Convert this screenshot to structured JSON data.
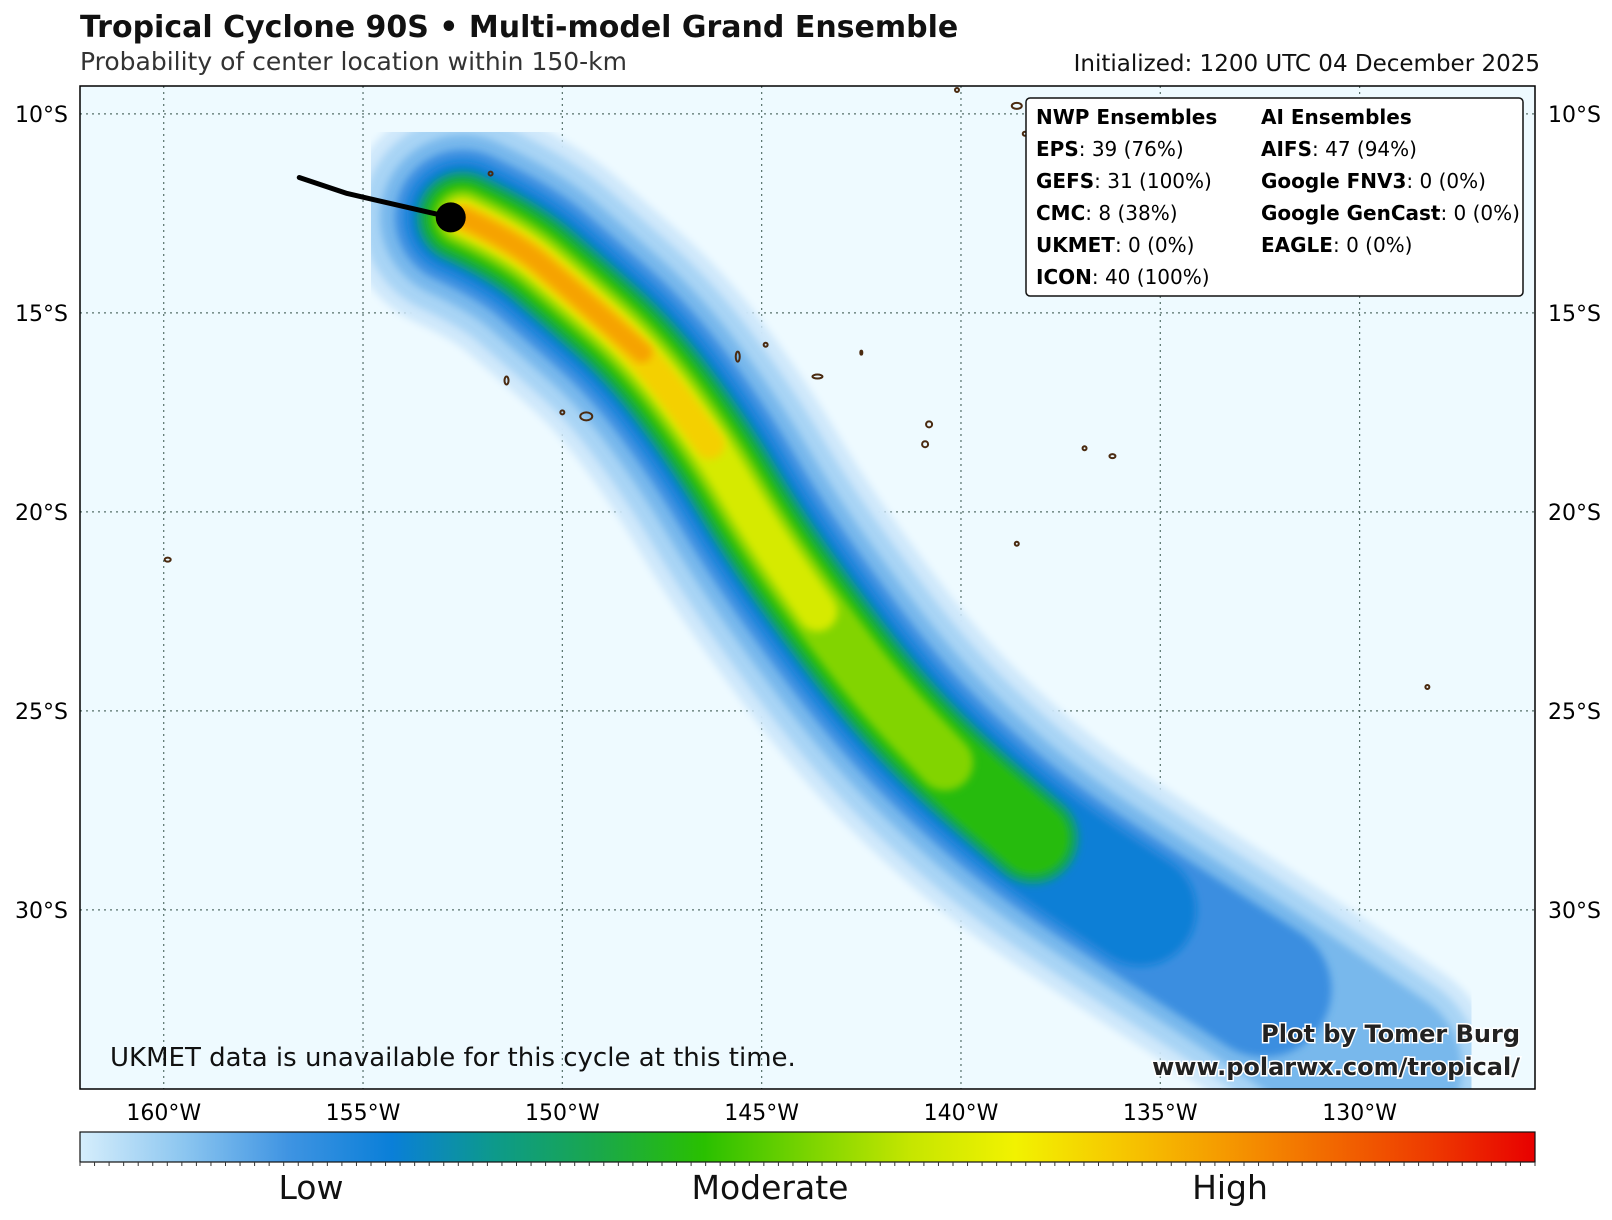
{
  "header": {
    "title": "Tropical Cyclone 90S • Multi-model Grand Ensemble",
    "subtitle": "Probability of center location within 150-km",
    "initialized": "Initialized: 1200 UTC 04 December 2025"
  },
  "map": {
    "lon_range": [
      -162.1,
      -125.6
    ],
    "lat_range": [
      -9.3,
      -34.5
    ],
    "lon_ticks": [
      -160,
      -155,
      -150,
      -145,
      -140,
      -135,
      -130
    ],
    "lon_tick_labels": [
      "160°W",
      "155°W",
      "150°W",
      "145°W",
      "140°W",
      "135°W",
      "130°W"
    ],
    "lat_ticks": [
      -10,
      -15,
      -20,
      -25,
      -30
    ],
    "lat_tick_labels": [
      "10°S",
      "15°S",
      "20°S",
      "25°S",
      "30°S"
    ],
    "gridlines": true,
    "ocean_color": "#eefaff",
    "land_outline_color": "#4a2a10",
    "track_color": "#000000",
    "current_position": {
      "lon": -152.8,
      "lat": -12.6
    },
    "past_track": [
      {
        "lon": -156.6,
        "lat": -11.6
      },
      {
        "lon": -155.4,
        "lat": -12.0
      },
      {
        "lon": -152.8,
        "lat": -12.6
      }
    ],
    "probability_axis": [
      {
        "lon": -152.5,
        "lat": -12.6
      },
      {
        "lon": -151.2,
        "lat": -13.2
      },
      {
        "lon": -149.8,
        "lat": -14.4
      },
      {
        "lon": -148.0,
        "lat": -16.0
      },
      {
        "lon": -146.3,
        "lat": -18.3
      },
      {
        "lon": -145.0,
        "lat": -20.5
      },
      {
        "lon": -143.6,
        "lat": -22.5
      },
      {
        "lon": -142.0,
        "lat": -24.6
      },
      {
        "lon": -140.4,
        "lat": -26.3
      },
      {
        "lon": -138.2,
        "lat": -28.2
      },
      {
        "lon": -135.5,
        "lat": -30.0
      },
      {
        "lon": -132.4,
        "lat": -32.0
      },
      {
        "lon": -129.5,
        "lat": -34.0
      }
    ]
  },
  "legend": {
    "nwp_header": "NWP Ensembles",
    "ai_header": "AI Ensembles",
    "nwp": [
      {
        "name": "EPS",
        "value": ": 39 (76%)"
      },
      {
        "name": "GEFS",
        "value": ": 31 (100%)"
      },
      {
        "name": "CMC",
        "value": ": 8 (38%)"
      },
      {
        "name": "UKMET",
        "value": ": 0 (0%)"
      },
      {
        "name": "ICON",
        "value": ": 40 (100%)"
      }
    ],
    "ai": [
      {
        "name": "AIFS",
        "value": ": 47 (94%)"
      },
      {
        "name": "Google FNV3",
        "value": ": 0 (0%)"
      },
      {
        "name": "Google GenCast",
        "value": ": 0 (0%)"
      },
      {
        "name": "EAGLE",
        "value": ": 0 (0%)"
      }
    ]
  },
  "notes": {
    "ukmet_notice": "UKMET data is unavailable for this cycle at this time.",
    "credit_line1": "Plot by Tomer Burg",
    "credit_line2": "www.polarwx.com/tropical/"
  },
  "colorbar": {
    "labels": [
      "Low",
      "Moderate",
      "High"
    ],
    "colors": [
      "#d6eefc",
      "#8cc6f0",
      "#3f94e2",
      "#0a7fd8",
      "#0d9a8a",
      "#1aa84a",
      "#29c000",
      "#7ad400",
      "#c6e600",
      "#f2f200",
      "#f6c800",
      "#f59a00",
      "#f26a00",
      "#ee3a00",
      "#e80000"
    ]
  }
}
